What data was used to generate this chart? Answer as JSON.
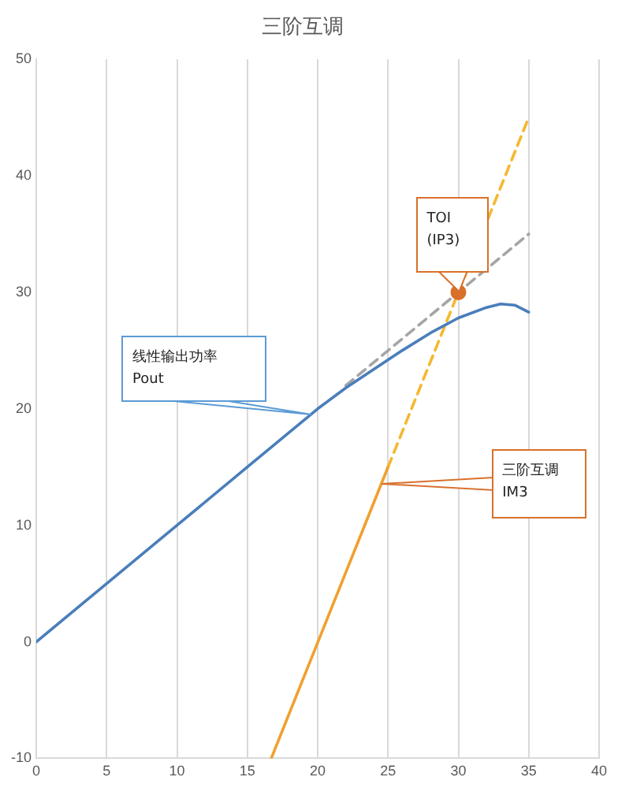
{
  "chart_data": {
    "type": "line",
    "title": "三阶互调",
    "xlim": [
      0,
      40
    ],
    "xticks": [
      0,
      5,
      10,
      15,
      20,
      25,
      30,
      35,
      40
    ],
    "ylim": [
      -10,
      50
    ],
    "yticks": [
      -10,
      0,
      10,
      20,
      30,
      40,
      50
    ],
    "grid": "x",
    "marker": "none",
    "series": [
      {
        "color": "#4a7ebb",
        "line_style": "solid",
        "x": [
          0,
          5,
          10,
          15,
          20,
          22,
          24,
          26,
          28,
          30,
          32,
          33,
          34,
          35
        ],
        "values": [
          0,
          5,
          10,
          15,
          20,
          21.8,
          23.4,
          25,
          26.5,
          27.8,
          28.7,
          29,
          28.9,
          28.3
        ]
      },
      {
        "color": "#a5a5a5",
        "line_style": "dashed",
        "x": [
          22,
          35
        ],
        "values": [
          22,
          35
        ]
      },
      {
        "color": "#f0a030",
        "line_style": "solid",
        "x": [
          16.7,
          25
        ],
        "values": [
          -10,
          15
        ]
      },
      {
        "color": "#f5b830",
        "line_style": "dashed",
        "x": [
          25,
          35
        ],
        "values": [
          15,
          45
        ]
      },
      {
        "type": "scatter",
        "marker": "circle",
        "color": "#d8702c",
        "x": [
          30
        ],
        "values": [
          30
        ]
      }
    ],
    "annotations": [
      {
        "text": "TOI\n(IP3)",
        "x": 30,
        "y": 30
      },
      {
        "text": "线性输出功率\nPout",
        "x": 19.5,
        "y": 19.5
      },
      {
        "text": "三阶互调\nIM3",
        "x": 24.5,
        "y": 13.5
      }
    ]
  }
}
